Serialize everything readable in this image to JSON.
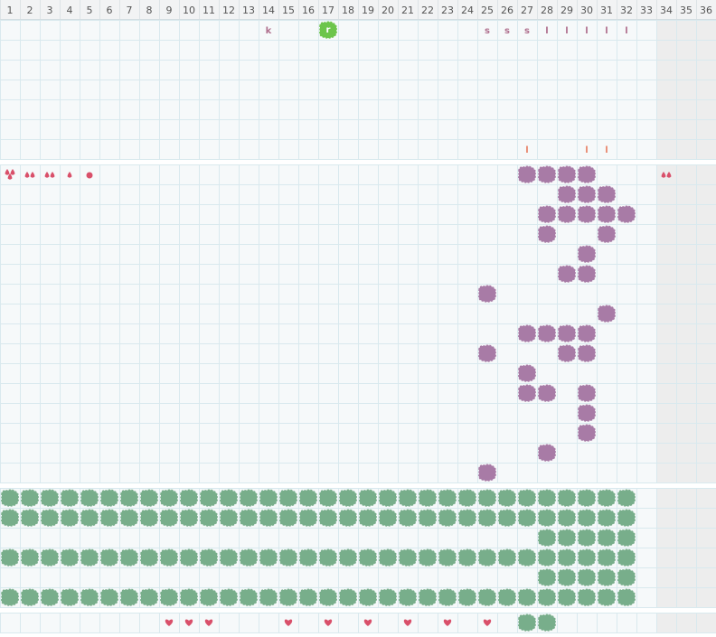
{
  "days": [
    1,
    2,
    3,
    4,
    5,
    6,
    7,
    8,
    9,
    10,
    11,
    12,
    13,
    14,
    15,
    16,
    17,
    18,
    19,
    20,
    21,
    22,
    23,
    24,
    25,
    26,
    27,
    28,
    29,
    30,
    31,
    32,
    33,
    34,
    35,
    36
  ],
  "top": {
    "letters": [
      {
        "day": 14,
        "text": "k"
      },
      {
        "day": 25,
        "text": "s"
      },
      {
        "day": 26,
        "text": "s"
      },
      {
        "day": 27,
        "text": "s"
      },
      {
        "day": 28,
        "text": "l"
      },
      {
        "day": 29,
        "text": "l"
      },
      {
        "day": 30,
        "text": "l"
      },
      {
        "day": 31,
        "text": "l"
      },
      {
        "day": 32,
        "text": "l"
      }
    ],
    "sprout": {
      "day": 17,
      "text": "r"
    },
    "water_triple": [
      1
    ],
    "water_double": [
      2,
      3,
      34
    ],
    "water_single": [
      4
    ],
    "water_round": [
      5
    ],
    "hearts": [
      9,
      10,
      11,
      15,
      17,
      19,
      21,
      23,
      25
    ],
    "markers": [
      {
        "day": 27,
        "text": "l"
      },
      {
        "day": 30,
        "text": "l"
      },
      {
        "day": 31,
        "text": "l"
      }
    ]
  },
  "weeds": [
    [
      27,
      28,
      29,
      30
    ],
    [
      29,
      30,
      31
    ],
    [
      28,
      29,
      30,
      31,
      32
    ],
    [
      28,
      31
    ],
    [
      30
    ],
    [
      29,
      30
    ],
    [
      25
    ],
    [
      31
    ],
    [
      27,
      28,
      29,
      30
    ],
    [
      25,
      29,
      30
    ],
    [
      27
    ],
    [
      27,
      28,
      30
    ],
    [
      30
    ],
    [
      30
    ],
    [
      28
    ],
    [
      25
    ]
  ],
  "crops": [
    [
      1,
      2,
      3,
      4,
      5,
      6,
      7,
      8,
      9,
      10,
      11,
      12,
      13,
      14,
      15,
      16,
      17,
      18,
      19,
      20,
      21,
      22,
      23,
      24,
      25,
      26,
      27,
      28,
      29,
      30,
      31,
      32
    ],
    [
      1,
      2,
      3,
      4,
      5,
      6,
      7,
      8,
      9,
      10,
      11,
      12,
      13,
      14,
      15,
      16,
      17,
      18,
      19,
      20,
      21,
      22,
      23,
      24,
      25,
      26,
      27,
      28,
      29,
      30,
      31,
      32
    ],
    [
      28,
      29,
      30,
      31,
      32
    ],
    [
      1,
      2,
      3,
      4,
      5,
      6,
      7,
      8,
      9,
      10,
      11,
      12,
      13,
      14,
      15,
      16,
      17,
      18,
      19,
      20,
      21,
      22,
      23,
      24,
      25,
      26,
      27,
      28,
      29,
      30,
      31,
      32
    ],
    [
      28,
      29,
      30,
      31,
      32
    ],
    [
      1,
      2,
      3,
      4,
      5,
      6,
      7,
      8,
      9,
      10,
      11,
      12,
      13,
      14,
      15,
      16,
      17,
      18,
      19,
      20,
      21,
      22,
      23,
      24,
      25,
      26,
      27,
      28,
      29,
      30,
      31,
      32
    ]
  ],
  "harvest": [
    [
      27,
      28
    ]
  ]
}
